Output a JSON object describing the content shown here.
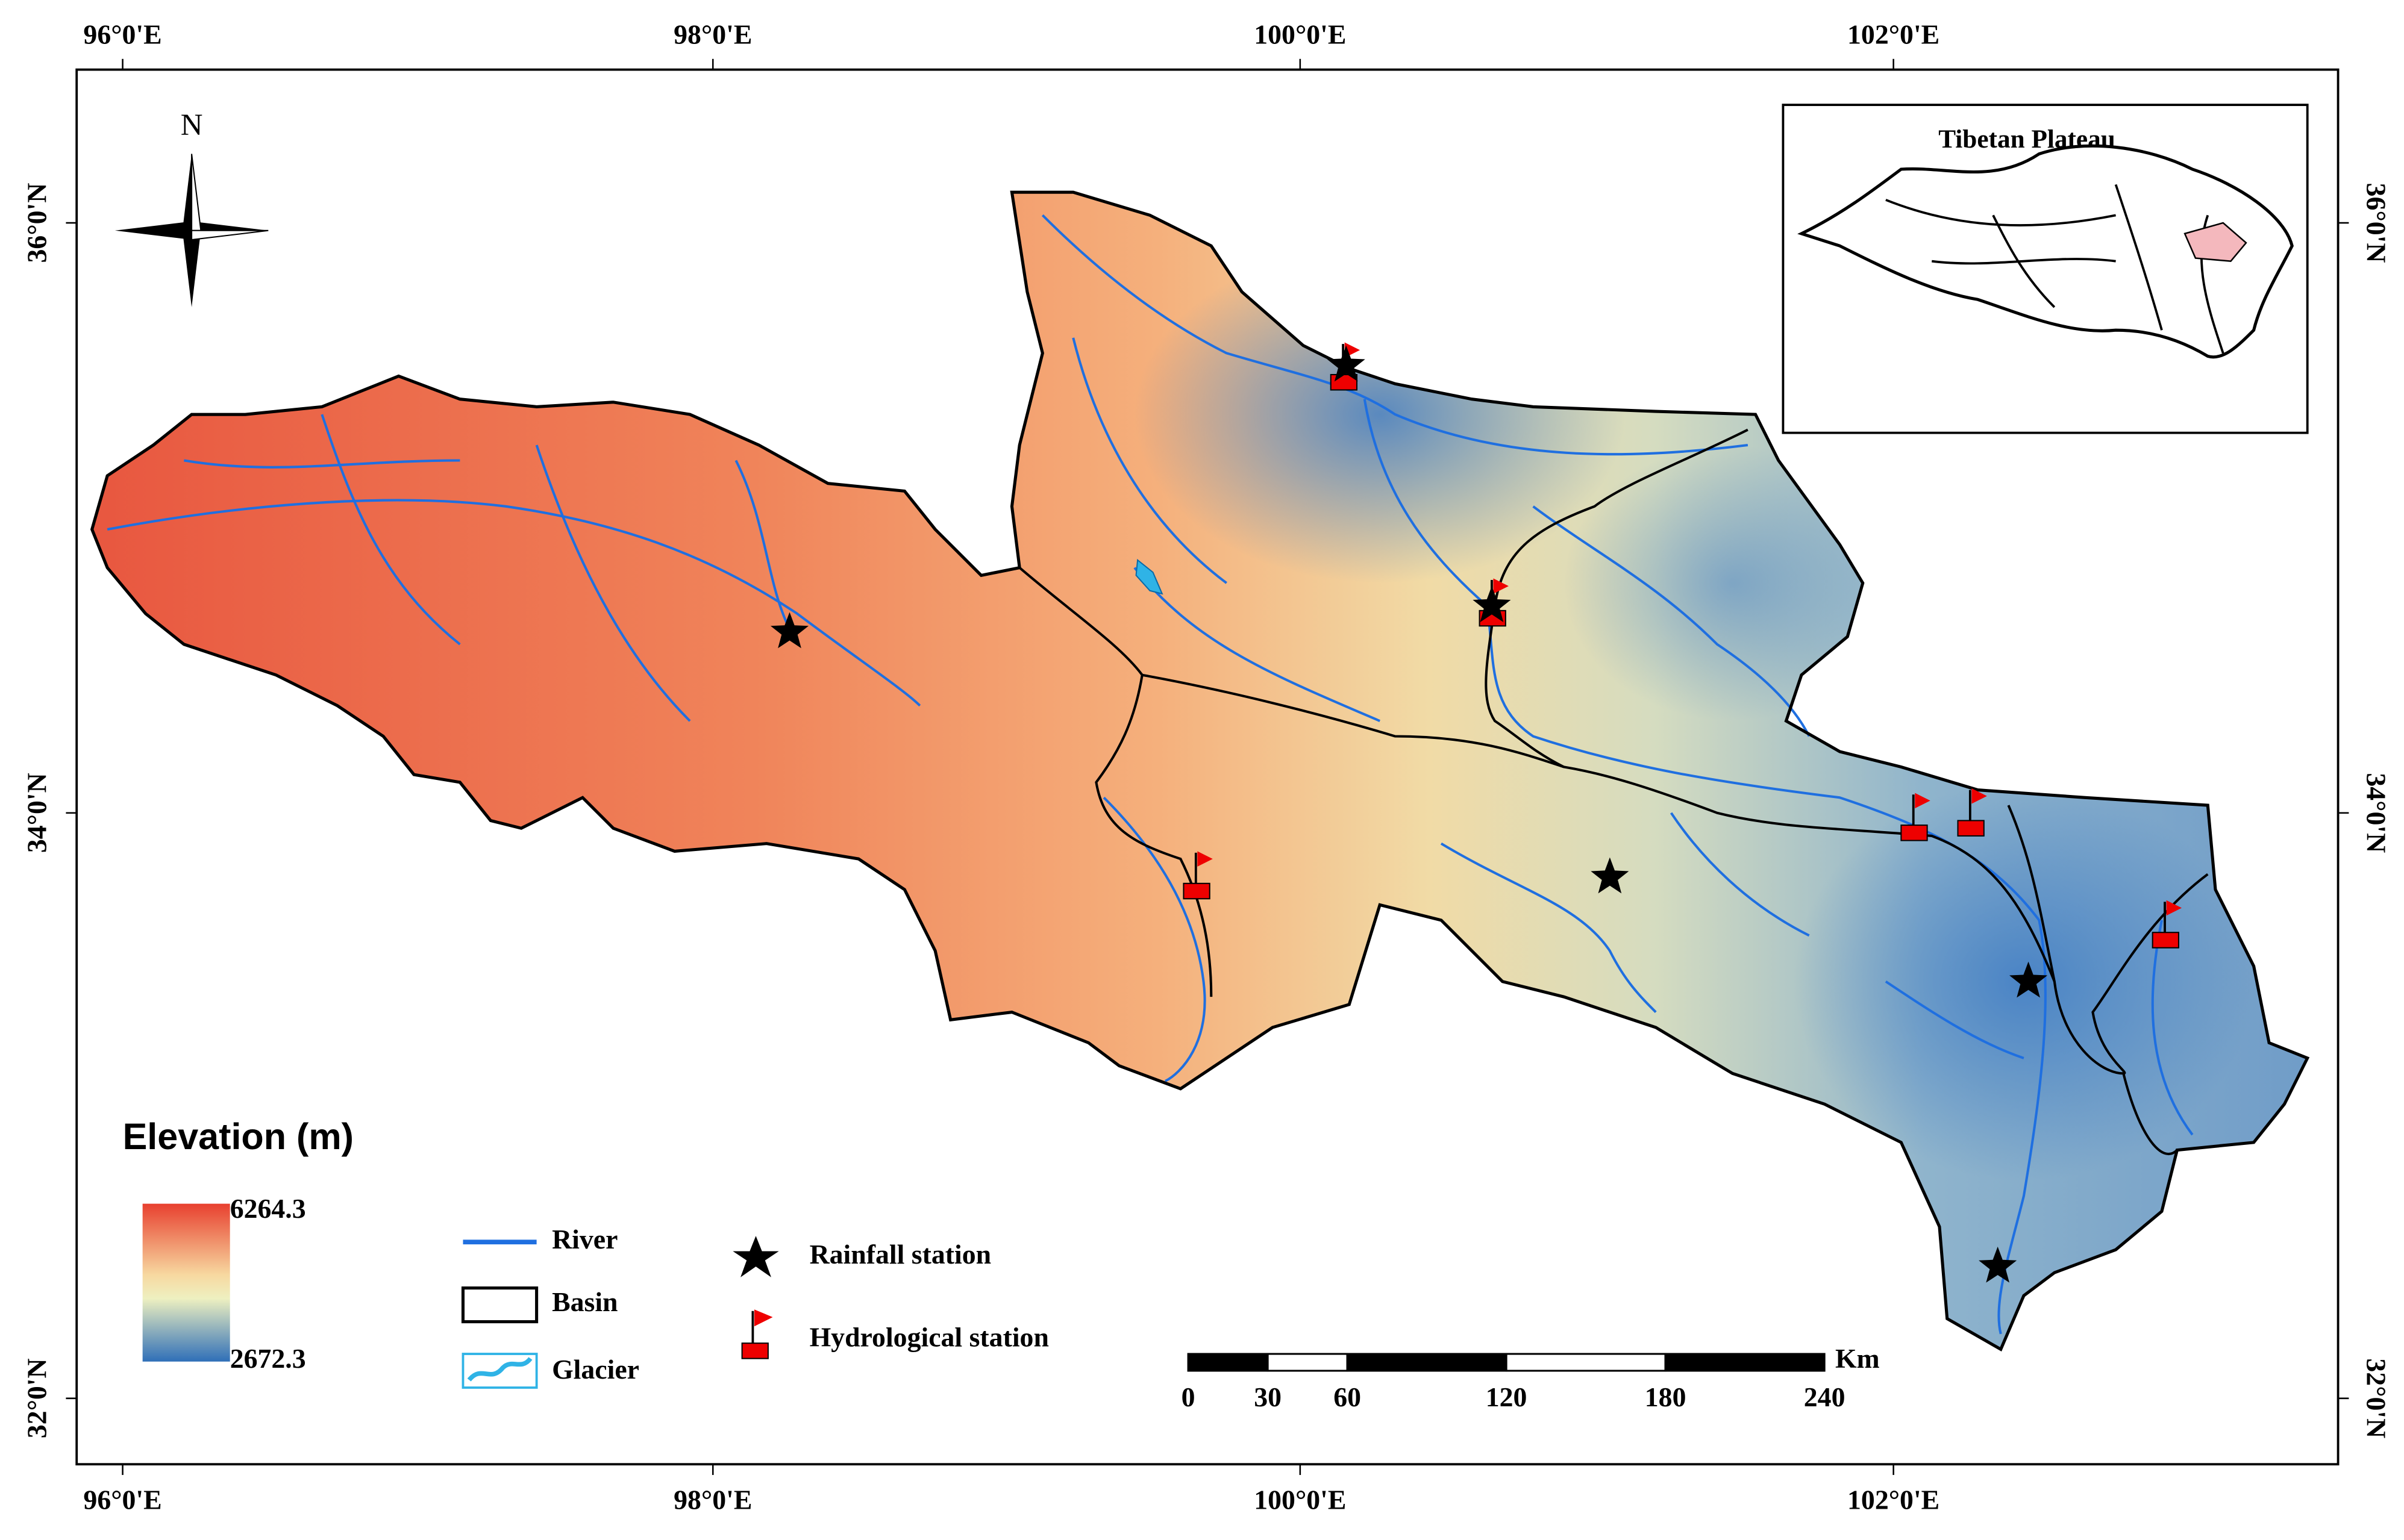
{
  "map": {
    "longitude_labels": [
      "96°0'E",
      "98°0'E",
      "100°0'E",
      "102°0'E"
    ],
    "latitude_labels": [
      "36°0'N",
      "34°0'N",
      "32°0'N"
    ],
    "north_label": "N",
    "inset": {
      "title": "Tibetan Plateau"
    },
    "legend": {
      "elevation_title": "Elevation (m)",
      "elevation_max": 6264.3,
      "elevation_min": 2672.3,
      "items": [
        "River",
        "Basin",
        "Glacier",
        "Rainfall station",
        "Hydrological station"
      ]
    },
    "scale_bar": {
      "unit": "Km",
      "ticks": [
        0,
        30,
        60,
        120,
        180,
        240
      ]
    }
  }
}
